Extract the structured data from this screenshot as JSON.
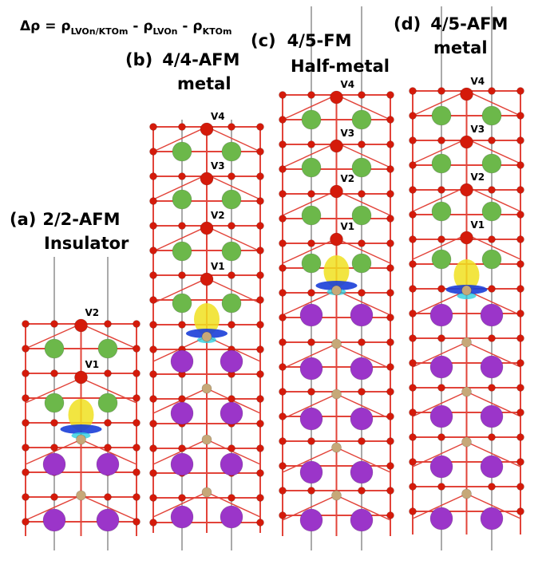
{
  "equation": {
    "lead": "Δρ = ρ",
    "sub_1": "LVOn/KTOm",
    "sep_1": " - ρ",
    "sub_2": "LVOn",
    "sep_2": " - ρ",
    "sub_3": "KTOm"
  },
  "panels": [
    {
      "label": "(a)",
      "name": "2/2-AFM",
      "state": "Insulator",
      "atoms": [
        "V2",
        "V1"
      ]
    },
    {
      "label": "(b)",
      "name": "4/4-AFM",
      "state": "metal",
      "atoms": [
        "V4",
        "V3",
        "V2",
        "V1"
      ]
    },
    {
      "label": "(c)",
      "name": "4/5-FM",
      "state": "Half-metal",
      "atoms": [
        "V4",
        "V3",
        "V2",
        "V1"
      ]
    },
    {
      "label": "(d)",
      "name": "4/5-AFM",
      "state": "metal",
      "atoms": [
        "V4",
        "V3",
        "V2",
        "V1"
      ]
    }
  ]
}
